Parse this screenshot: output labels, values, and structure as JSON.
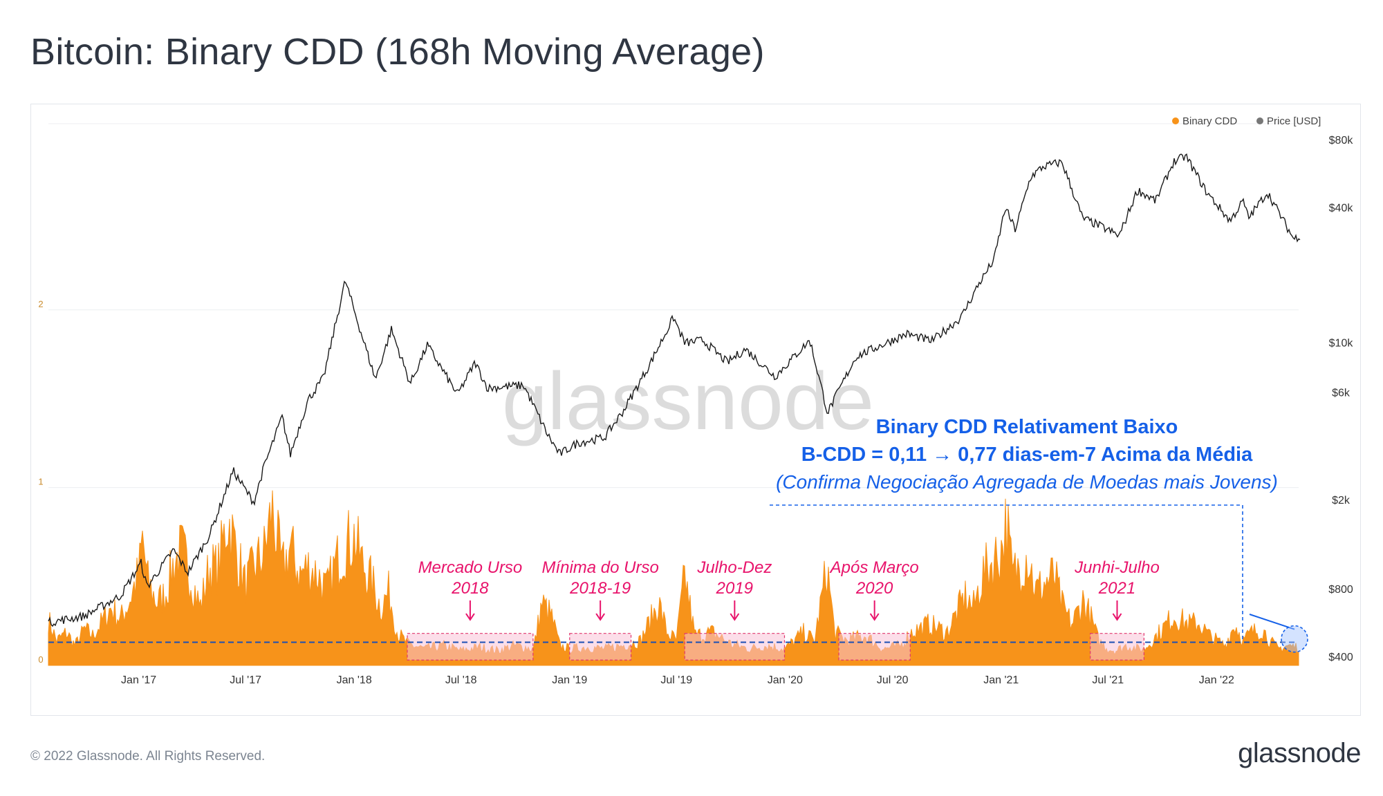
{
  "page": {
    "title": "Bitcoin: Binary CDD (168h Moving Average)",
    "footer_copyright": "© 2022 Glassnode. All Rights Reserved.",
    "footer_logo": "glassnode",
    "watermark": "glassnode"
  },
  "colors": {
    "cdd": "#f7931a",
    "price": "#1a1a1a",
    "legend_price_dot": "#777777",
    "annotation_pink": "#e8136b",
    "annotation_blue": "#1560e8",
    "box_fill": "#f9c3d7",
    "threshold_line": "#1a4fb4"
  },
  "chart_data": {
    "type": "area",
    "legend": [
      {
        "name": "Binary CDD",
        "color": "#f7931a"
      },
      {
        "name": "Price [USD]",
        "color": "#777777"
      }
    ],
    "x_ticks": [
      "Jan '17",
      "Jul '17",
      "Jan '18",
      "Jul '18",
      "Jan '19",
      "Jul '19",
      "Jan '20",
      "Jul '20",
      "Jan '21",
      "Jul '21",
      "Jan '22"
    ],
    "x_range": [
      "2016-08-01",
      "2022-05-20"
    ],
    "y_left": {
      "ticks": [
        "0",
        "1",
        "2"
      ],
      "ylim": [
        0,
        3
      ]
    },
    "y_right": {
      "scale": "log",
      "ticks": [
        "$400",
        "$800",
        "$2k",
        "$6k",
        "$10k",
        "$40k",
        "$80k"
      ]
    },
    "threshold": 0.13,
    "series": [
      {
        "name": "Binary CDD",
        "axis": "left",
        "points": [
          [
            "2016-08-01",
            0.28
          ],
          [
            "2016-08-15",
            0.15
          ],
          [
            "2016-09-01",
            0.2
          ],
          [
            "2016-09-15",
            0.12
          ],
          [
            "2016-10-01",
            0.22
          ],
          [
            "2016-10-15",
            0.18
          ],
          [
            "2016-11-01",
            0.27
          ],
          [
            "2016-11-15",
            0.35
          ],
          [
            "2016-12-01",
            0.28
          ],
          [
            "2016-12-15",
            0.38
          ],
          [
            "2017-01-01",
            0.56
          ],
          [
            "2017-01-08",
            0.78
          ],
          [
            "2017-01-15",
            0.52
          ],
          [
            "2017-02-01",
            0.38
          ],
          [
            "2017-02-15",
            0.43
          ],
          [
            "2017-03-01",
            0.62
          ],
          [
            "2017-03-15",
            0.7
          ],
          [
            "2017-04-01",
            0.52
          ],
          [
            "2017-04-15",
            0.35
          ],
          [
            "2017-05-01",
            0.6
          ],
          [
            "2017-05-15",
            0.58
          ],
          [
            "2017-06-01",
            0.9
          ],
          [
            "2017-06-15",
            0.7
          ],
          [
            "2017-07-01",
            0.48
          ],
          [
            "2017-07-15",
            0.6
          ],
          [
            "2017-08-01",
            0.68
          ],
          [
            "2017-08-15",
            0.95
          ],
          [
            "2017-09-01",
            0.58
          ],
          [
            "2017-09-15",
            0.72
          ],
          [
            "2017-10-01",
            0.55
          ],
          [
            "2017-10-15",
            0.6
          ],
          [
            "2017-11-01",
            0.55
          ],
          [
            "2017-11-15",
            0.45
          ],
          [
            "2017-12-01",
            0.62
          ],
          [
            "2017-12-15",
            0.72
          ],
          [
            "2018-01-01",
            0.78
          ],
          [
            "2018-01-15",
            0.62
          ],
          [
            "2018-02-01",
            0.5
          ],
          [
            "2018-02-15",
            0.35
          ],
          [
            "2018-03-01",
            0.45
          ],
          [
            "2018-03-15",
            0.2
          ],
          [
            "2018-04-01",
            0.13
          ],
          [
            "2018-05-01",
            0.1
          ],
          [
            "2018-06-01",
            0.12
          ],
          [
            "2018-07-01",
            0.09
          ],
          [
            "2018-08-01",
            0.11
          ],
          [
            "2018-09-01",
            0.09
          ],
          [
            "2018-10-01",
            0.12
          ],
          [
            "2018-11-01",
            0.1
          ],
          [
            "2018-11-15",
            0.38
          ],
          [
            "2018-12-01",
            0.3
          ],
          [
            "2018-12-15",
            0.12
          ],
          [
            "2019-01-01",
            0.1
          ],
          [
            "2019-02-01",
            0.11
          ],
          [
            "2019-03-01",
            0.1
          ],
          [
            "2019-04-01",
            0.12
          ],
          [
            "2019-05-01",
            0.15
          ],
          [
            "2019-06-01",
            0.38
          ],
          [
            "2019-06-15",
            0.2
          ],
          [
            "2019-07-01",
            0.15
          ],
          [
            "2019-07-15",
            0.55
          ],
          [
            "2019-08-01",
            0.18
          ],
          [
            "2019-09-01",
            0.2
          ],
          [
            "2019-10-01",
            0.13
          ],
          [
            "2019-11-01",
            0.1
          ],
          [
            "2019-12-01",
            0.12
          ],
          [
            "2020-01-01",
            0.1
          ],
          [
            "2020-02-01",
            0.2
          ],
          [
            "2020-02-20",
            0.15
          ],
          [
            "2020-03-12",
            0.6
          ],
          [
            "2020-03-25",
            0.2
          ],
          [
            "2020-04-15",
            0.15
          ],
          [
            "2020-05-15",
            0.18
          ],
          [
            "2020-06-15",
            0.1
          ],
          [
            "2020-07-15",
            0.12
          ],
          [
            "2020-08-01",
            0.2
          ],
          [
            "2020-09-01",
            0.25
          ],
          [
            "2020-10-01",
            0.2
          ],
          [
            "2020-11-01",
            0.42
          ],
          [
            "2020-11-15",
            0.35
          ],
          [
            "2020-12-01",
            0.55
          ],
          [
            "2020-12-15",
            0.62
          ],
          [
            "2021-01-01",
            0.7
          ],
          [
            "2021-01-10",
            0.88
          ],
          [
            "2021-01-20",
            0.55
          ],
          [
            "2021-02-01",
            0.6
          ],
          [
            "2021-02-15",
            0.68
          ],
          [
            "2021-03-01",
            0.45
          ],
          [
            "2021-04-01",
            0.55
          ],
          [
            "2021-04-15",
            0.35
          ],
          [
            "2021-05-01",
            0.25
          ],
          [
            "2021-05-20",
            0.4
          ],
          [
            "2021-06-01",
            0.3
          ],
          [
            "2021-06-15",
            0.15
          ],
          [
            "2021-07-01",
            0.1
          ],
          [
            "2021-07-15",
            0.09
          ],
          [
            "2021-08-01",
            0.12
          ],
          [
            "2021-08-20",
            0.1
          ],
          [
            "2021-09-01",
            0.1
          ],
          [
            "2021-10-01",
            0.22
          ],
          [
            "2021-10-20",
            0.3
          ],
          [
            "2021-11-15",
            0.25
          ],
          [
            "2021-12-01",
            0.26
          ],
          [
            "2021-12-20",
            0.18
          ],
          [
            "2022-01-15",
            0.12
          ],
          [
            "2022-02-01",
            0.25
          ],
          [
            "2022-02-15",
            0.15
          ],
          [
            "2022-03-01",
            0.2
          ],
          [
            "2022-03-20",
            0.22
          ],
          [
            "2022-04-01",
            0.15
          ],
          [
            "2022-04-15",
            0.1
          ],
          [
            "2022-05-01",
            0.12
          ],
          [
            "2022-05-20",
            0.11
          ]
        ]
      },
      {
        "name": "Price [USD]",
        "axis": "right",
        "points": [
          [
            "2016-08-01",
            570
          ],
          [
            "2016-10-01",
            610
          ],
          [
            "2016-12-01",
            750
          ],
          [
            "2017-01-05",
            1050
          ],
          [
            "2017-01-15",
            820
          ],
          [
            "2017-03-01",
            1200
          ],
          [
            "2017-03-25",
            950
          ],
          [
            "2017-05-01",
            1400
          ],
          [
            "2017-06-10",
            2700
          ],
          [
            "2017-07-15",
            1950
          ],
          [
            "2017-08-01",
            2800
          ],
          [
            "2017-09-01",
            4700
          ],
          [
            "2017-09-15",
            3200
          ],
          [
            "2017-10-15",
            5600
          ],
          [
            "2017-11-10",
            7000
          ],
          [
            "2017-12-17",
            19000
          ],
          [
            "2018-01-01",
            14000
          ],
          [
            "2018-02-06",
            6900
          ],
          [
            "2018-03-05",
            11500
          ],
          [
            "2018-04-06",
            6600
          ],
          [
            "2018-05-05",
            9800
          ],
          [
            "2018-06-25",
            5900
          ],
          [
            "2018-07-25",
            8200
          ],
          [
            "2018-08-15",
            6300
          ],
          [
            "2018-10-15",
            6500
          ],
          [
            "2018-11-25",
            3900
          ],
          [
            "2018-12-15",
            3200
          ],
          [
            "2019-01-15",
            3600
          ],
          [
            "2019-03-01",
            3800
          ],
          [
            "2019-04-02",
            5000
          ],
          [
            "2019-05-15",
            7900
          ],
          [
            "2019-06-26",
            13000
          ],
          [
            "2019-07-15",
            10000
          ],
          [
            "2019-08-15",
            10300
          ],
          [
            "2019-09-25",
            8200
          ],
          [
            "2019-10-26",
            9400
          ],
          [
            "2019-12-15",
            7100
          ],
          [
            "2020-02-12",
            10300
          ],
          [
            "2020-03-13",
            4900
          ],
          [
            "2020-04-30",
            8700
          ],
          [
            "2020-06-01",
            9500
          ],
          [
            "2020-07-25",
            11000
          ],
          [
            "2020-09-05",
            10200
          ],
          [
            "2020-10-25",
            13000
          ],
          [
            "2020-11-25",
            18500
          ],
          [
            "2020-12-20",
            23500
          ],
          [
            "2021-01-08",
            40000
          ],
          [
            "2021-01-25",
            32000
          ],
          [
            "2021-02-20",
            55000
          ],
          [
            "2021-03-13",
            61000
          ],
          [
            "2021-04-14",
            64000
          ],
          [
            "2021-05-19",
            36000
          ],
          [
            "2021-06-20",
            33000
          ],
          [
            "2021-07-20",
            30000
          ],
          [
            "2021-08-20",
            48000
          ],
          [
            "2021-09-20",
            43000
          ],
          [
            "2021-10-20",
            64000
          ],
          [
            "2021-11-10",
            68000
          ],
          [
            "2021-12-15",
            47000
          ],
          [
            "2022-01-24",
            35000
          ],
          [
            "2022-02-15",
            43000
          ],
          [
            "2022-02-24",
            36000
          ],
          [
            "2022-03-28",
            47000
          ],
          [
            "2022-05-12",
            29000
          ],
          [
            "2022-05-20",
            30000
          ]
        ]
      }
    ],
    "low_periods": [
      {
        "from": "2018-04-01",
        "to": "2018-10-31",
        "label": [
          "Mercado Urso",
          "2018"
        ]
      },
      {
        "from": "2019-01-01",
        "to": "2019-04-15",
        "label": [
          "Mínima do Urso",
          "2018-19"
        ]
      },
      {
        "from": "2019-07-15",
        "to": "2019-12-31",
        "label": [
          "Julho-Dez",
          "2019"
        ]
      },
      {
        "from": "2020-04-01",
        "to": "2020-07-31",
        "label": [
          "Após Março",
          "2020"
        ]
      },
      {
        "from": "2021-06-01",
        "to": "2021-08-31",
        "label": [
          "Junhi-Julho",
          "2021"
        ]
      }
    ],
    "callout": {
      "lines": [
        "Binary CDD Relativament Baixo",
        "B-CDD = 0,11 → 0,77 dias-em-7 Acima da Média",
        "(Confirma Negociação Agregada de Moedas mais Jovens)"
      ],
      "point_date": "2022-05-20",
      "point_value": 0.11
    }
  }
}
